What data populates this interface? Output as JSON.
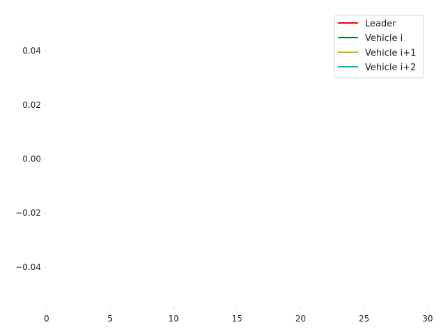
{
  "chart_data": {
    "type": "line",
    "x": [],
    "series": [
      {
        "name": "Leader",
        "color": "#ff0000",
        "values": []
      },
      {
        "name": "Vehicle i",
        "color": "#008000",
        "values": []
      },
      {
        "name": "Vehicle i+1",
        "color": "#bfbf00",
        "values": []
      },
      {
        "name": "Vehicle i+2",
        "color": "#00bfbf",
        "values": []
      }
    ],
    "xlim": [
      0,
      30
    ],
    "ylim": [
      -0.055,
      0.055
    ],
    "xticks": [
      0,
      5,
      10,
      15,
      20,
      25,
      30
    ],
    "xtick_labels": [
      "0",
      "5",
      "10",
      "15",
      "20",
      "25",
      "30"
    ],
    "yticks": [
      -0.04,
      -0.02,
      0.0,
      0.02,
      0.04
    ],
    "ytick_labels": [
      "−0.04",
      "−0.02",
      "0.00",
      "0.02",
      "0.04"
    ],
    "grid": false,
    "legend_position": "top-right",
    "title": "",
    "xlabel": "",
    "ylabel": ""
  }
}
